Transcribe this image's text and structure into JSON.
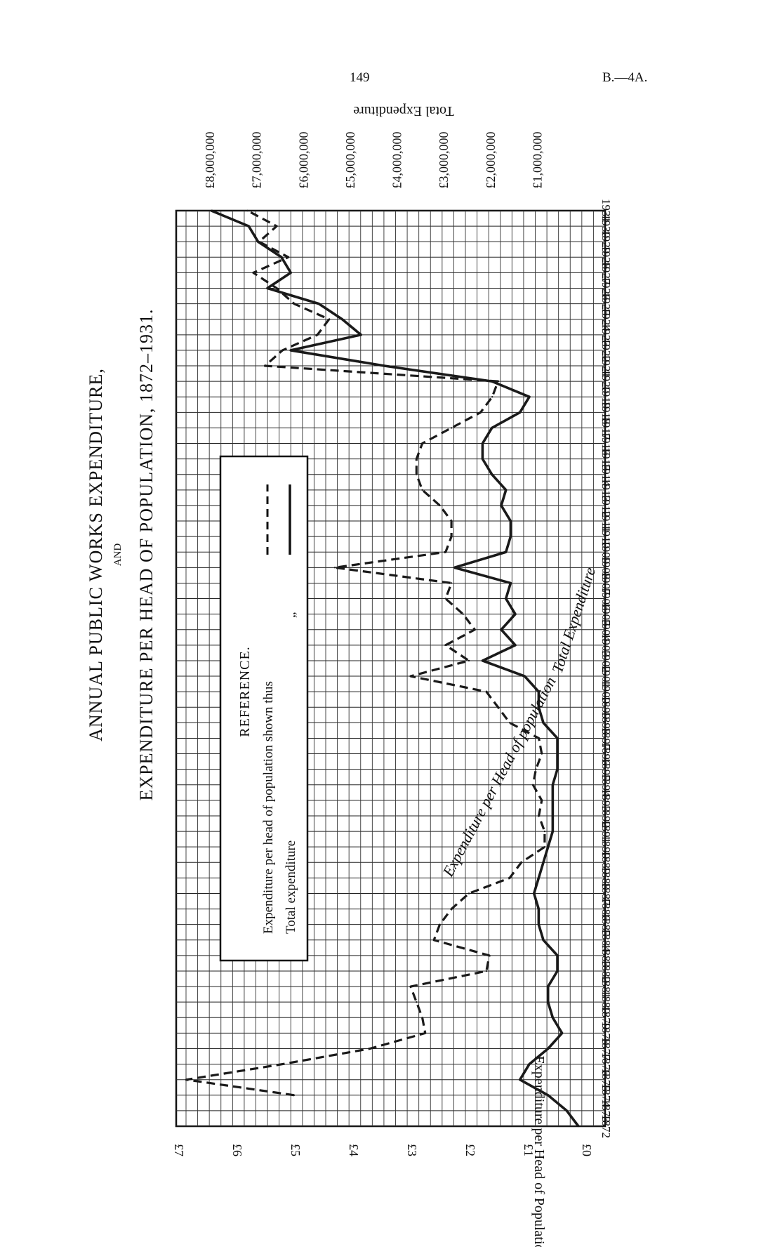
{
  "page": {
    "number": "149",
    "reference": "B.—4A."
  },
  "chart_data": {
    "type": "line",
    "title": "ANNUAL PUBLIC WORKS EXPENDITURE,",
    "title_and": "AND",
    "subtitle": "EXPENDITURE PER HEAD OF POPULATION, 1872–1931.",
    "xlabel": "",
    "ylabel_left": "Expenditure per Head of Population",
    "ylabel_right": "Total Expenditure",
    "x_ticks": [
      "1872",
      "1873",
      "1874",
      "1875",
      "1876",
      "1877",
      "1878",
      "1879",
      "1880",
      "1881",
      "1882",
      "1883",
      "1884",
      "1885",
      "1886",
      "1887",
      "1888",
      "1889",
      "1890",
      "1891",
      "1892",
      "1893",
      "1894",
      "1895",
      "1896",
      "1897",
      "1898",
      "1899",
      "1900",
      "1901",
      "1902",
      "1903",
      "1904",
      "1905",
      "1906",
      "1907",
      "1908",
      "1909",
      "1910",
      "1911",
      "1912",
      "1913",
      "1914",
      "1915",
      "1916",
      "1917",
      "1918",
      "1919",
      "1920",
      "1921",
      "1922",
      "1923",
      "1924",
      "1925",
      "1926",
      "1927",
      "1928",
      "1929",
      "1930",
      "1931"
    ],
    "y_left_ticks": [
      "£0",
      "£1",
      "£2",
      "£3",
      "£4",
      "£5",
      "£6",
      "£7"
    ],
    "y_left_lim": [
      0,
      7
    ],
    "y_right_ticks": [
      "£1,000,000",
      "£2,000,000",
      "£3,000,000",
      "£4,000,000",
      "£5,000,000",
      "£6,000,000",
      "£7,000,000",
      "£8,000,000"
    ],
    "y_right_lim": [
      0,
      8750000
    ],
    "grid": true,
    "legend": {
      "position": "upper-centre",
      "title": "REFERENCE.",
      "entries": [
        {
          "label": "Expenditure per head of population shown thus",
          "style": "dashed"
        },
        {
          "label": "Total expenditure",
          "ditto": "„",
          "style": "solid"
        }
      ]
    },
    "annotations": [
      "Expenditure per Head of population",
      "Total Expenditure"
    ],
    "series": [
      {
        "name": "Expenditure per head of population",
        "axis": "left",
        "style": "dashed",
        "color": "#1a1a1a",
        "x": [
          1874,
          1875,
          1876,
          1877,
          1878,
          1879,
          1880,
          1881,
          1882,
          1883,
          1884,
          1885,
          1886,
          1887,
          1888,
          1889,
          1890,
          1891,
          1892,
          1893,
          1894,
          1895,
          1896,
          1897,
          1898,
          1899,
          1900,
          1901,
          1902,
          1903,
          1904,
          1905,
          1906,
          1907,
          1908,
          1909,
          1910,
          1911,
          1912,
          1913,
          1914,
          1915,
          1916,
          1917,
          1918,
          1919,
          1920,
          1921,
          1922,
          1923,
          1924,
          1925,
          1926,
          1927,
          1928,
          1929,
          1930,
          1931
        ],
        "values": [
          5.0,
          6.85,
          5.2,
          3.7,
          2.75,
          2.8,
          2.9,
          3.0,
          1.7,
          1.65,
          2.6,
          2.5,
          2.3,
          2.0,
          1.3,
          1.1,
          0.7,
          0.7,
          0.8,
          0.75,
          0.9,
          0.85,
          0.75,
          0.8,
          1.3,
          1.5,
          1.7,
          3.0,
          2.0,
          2.4,
          1.9,
          2.1,
          2.4,
          2.3,
          4.3,
          2.4,
          2.3,
          2.3,
          2.5,
          2.8,
          2.9,
          2.9,
          2.8,
          2.3,
          1.8,
          1.6,
          1.5,
          5.5,
          5.2,
          4.6,
          4.4,
          5.0,
          5.3,
          5.7,
          5.1,
          5.6,
          5.3,
          5.8
        ]
      },
      {
        "name": "Total expenditure",
        "axis": "right",
        "style": "solid",
        "color": "#1a1a1a",
        "x": [
          1872,
          1873,
          1874,
          1875,
          1876,
          1877,
          1878,
          1879,
          1880,
          1881,
          1882,
          1883,
          1884,
          1885,
          1886,
          1887,
          1888,
          1889,
          1890,
          1891,
          1892,
          1893,
          1894,
          1895,
          1896,
          1897,
          1898,
          1899,
          1900,
          1901,
          1902,
          1903,
          1904,
          1905,
          1906,
          1907,
          1908,
          1909,
          1910,
          1911,
          1912,
          1913,
          1914,
          1915,
          1916,
          1917,
          1918,
          1919,
          1920,
          1921,
          1922,
          1923,
          1924,
          1925,
          1926,
          1927,
          1928,
          1929,
          1930,
          1931
        ],
        "values": [
          150000,
          400000,
          800000,
          1400000,
          1200000,
          800000,
          500000,
          700000,
          800000,
          800000,
          600000,
          600000,
          900000,
          1000000,
          1000000,
          1100000,
          1000000,
          900000,
          800000,
          700000,
          700000,
          700000,
          700000,
          600000,
          600000,
          600000,
          900000,
          1000000,
          1000000,
          1300000,
          2200000,
          1500000,
          1800000,
          1500000,
          1700000,
          1600000,
          2800000,
          1700000,
          1600000,
          1600000,
          1800000,
          1700000,
          2000000,
          2200000,
          2200000,
          2000000,
          1400000,
          1200000,
          2000000,
          4300000,
          6300000,
          4800000,
          5200000,
          5700000,
          6800000,
          6300000,
          6500000,
          7000000,
          7200000,
          8000000
        ]
      }
    ]
  }
}
